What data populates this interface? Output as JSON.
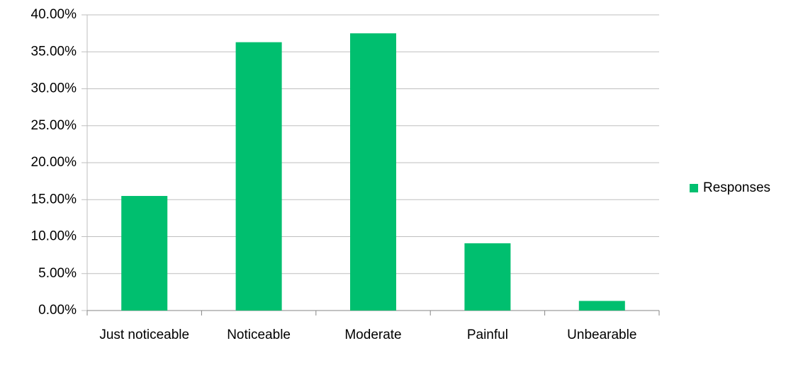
{
  "chart_data": {
    "type": "bar",
    "categories": [
      "Just noticeable",
      "Noticeable",
      "Moderate",
      "Painful",
      "Unbearable"
    ],
    "series": [
      {
        "name": "Responses",
        "color": "#00bf6f",
        "values": [
          15.5,
          36.3,
          37.5,
          9.1,
          1.3
        ]
      }
    ],
    "ylim": [
      0,
      40
    ],
    "yticks": [
      {
        "value": 0,
        "label": "0.00%"
      },
      {
        "value": 5,
        "label": "5.00%"
      },
      {
        "value": 10,
        "label": "10.00%"
      },
      {
        "value": 15,
        "label": "15.00%"
      },
      {
        "value": 20,
        "label": "20.00%"
      },
      {
        "value": 25,
        "label": "25.00%"
      },
      {
        "value": 30,
        "label": "30.00%"
      },
      {
        "value": 35,
        "label": "35.00%"
      },
      {
        "value": 40,
        "label": "40.00%"
      }
    ],
    "grid": true,
    "legend": "right"
  }
}
